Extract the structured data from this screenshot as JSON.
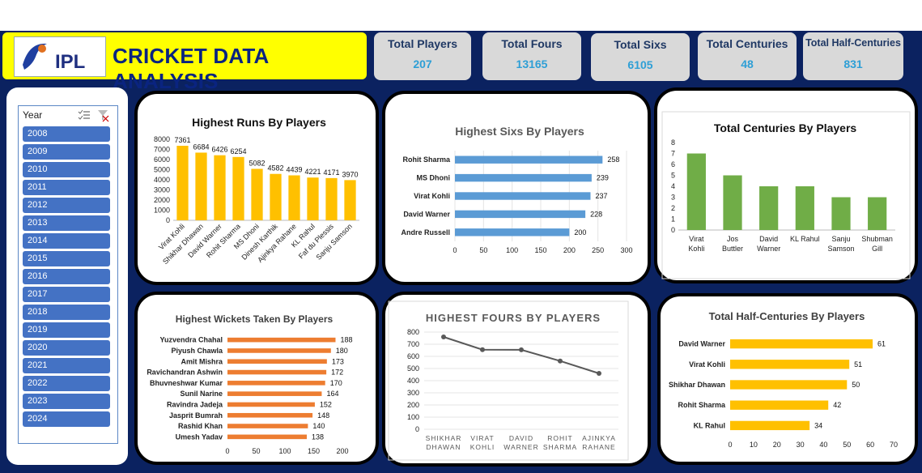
{
  "header": {
    "title": "CRICKET DATA ANALYSIS",
    "logo_text": "IPL"
  },
  "kpis": [
    {
      "label": "Total Players",
      "value": "207"
    },
    {
      "label": "Total Fours",
      "value": "13165"
    },
    {
      "label": "Total Sixs",
      "value": "6105"
    },
    {
      "label": "Total Centuries",
      "value": "48"
    },
    {
      "label": "Total Half-Centuries",
      "value": "831"
    }
  ],
  "slicer": {
    "title": "Year",
    "years": [
      "2008",
      "2009",
      "2010",
      "2011",
      "2012",
      "2013",
      "2014",
      "2015",
      "2016",
      "2017",
      "2018",
      "2019",
      "2020",
      "2021",
      "2022",
      "2023",
      "2024"
    ]
  },
  "colors": {
    "gold": "#ffc000",
    "blue": "#5b9bd5",
    "green": "#70ad47",
    "orange": "#ed7d31",
    "line": "#595959",
    "kpi_value": "#2e9fd6"
  },
  "chart_data": [
    {
      "id": "runs",
      "type": "bar",
      "title": "Highest Runs By Players",
      "categories": [
        "Virat Kohli",
        "Shikhar Dhawan",
        "David Warner",
        "Rohit Sharma",
        "MS Dhoni",
        "Dinesh Karthik",
        "Ajinkya Rahane",
        "KL Rahul",
        "Faf du Plessis",
        "Sanju Samson"
      ],
      "values": [
        7361,
        6684,
        6426,
        6254,
        5082,
        4582,
        4439,
        4221,
        4171,
        3970
      ],
      "ylim": [
        0,
        8000
      ],
      "yticks": [
        0,
        1000,
        2000,
        3000,
        4000,
        5000,
        6000,
        7000,
        8000
      ]
    },
    {
      "id": "sixes",
      "type": "bar",
      "orientation": "horizontal",
      "title": "Highest Sixs By Players",
      "categories": [
        "Rohit Sharma",
        "MS Dhoni",
        "Virat Kohli",
        "David Warner",
        "Andre Russell"
      ],
      "values": [
        258,
        239,
        237,
        228,
        200
      ],
      "xlim": [
        0,
        300
      ],
      "xticks": [
        0,
        50,
        100,
        150,
        200,
        250,
        300
      ]
    },
    {
      "id": "centuries",
      "type": "bar",
      "title": "Total Centuries By Players",
      "categories": [
        "Virat Kohli",
        "Jos Buttler",
        "David Warner",
        "KL Rahul",
        "Sanju Samson",
        "Shubman Gill"
      ],
      "values": [
        7,
        5,
        4,
        4,
        3,
        3
      ],
      "ylim": [
        0,
        8
      ],
      "yticks": [
        0,
        1,
        2,
        3,
        4,
        5,
        6,
        7,
        8
      ]
    },
    {
      "id": "wickets",
      "type": "bar",
      "orientation": "horizontal",
      "title": "Highest Wickets Taken By Players",
      "categories": [
        "Yuzvendra Chahal",
        "Piyush Chawla",
        "Amit Mishra",
        "Ravichandran Ashwin",
        "Bhuvneshwar Kumar",
        "Sunil Narine",
        "Ravindra Jadeja",
        "Jasprit Bumrah",
        "Rashid Khan",
        "Umesh Yadav"
      ],
      "values": [
        188,
        180,
        173,
        172,
        170,
        164,
        152,
        148,
        140,
        138
      ],
      "xlim": [
        0,
        200
      ],
      "xticks": [
        0,
        50,
        100,
        150,
        200
      ]
    },
    {
      "id": "fours",
      "type": "line",
      "title": "HIGHEST FOURS BY PLAYERS",
      "categories": [
        "SHIKHAR DHAWAN",
        "VIRAT KOHLI",
        "DAVID WARNER",
        "ROHIT SHARMA",
        "AJINKYA RAHANE"
      ],
      "values": [
        760,
        655,
        654,
        562,
        460
      ],
      "ylim": [
        0,
        800
      ],
      "yticks": [
        0,
        100,
        200,
        300,
        400,
        500,
        600,
        700,
        800
      ]
    },
    {
      "id": "halfcent",
      "type": "bar",
      "orientation": "horizontal",
      "title": "Total Half-Centuries By Players",
      "categories": [
        "David Warner",
        "Virat Kohli",
        "Shikhar Dhawan",
        "Rohit Sharma",
        "KL Rahul"
      ],
      "values": [
        61,
        51,
        50,
        42,
        34
      ],
      "xlim": [
        0,
        70
      ],
      "xticks": [
        0,
        10,
        20,
        30,
        40,
        50,
        60,
        70
      ]
    }
  ]
}
